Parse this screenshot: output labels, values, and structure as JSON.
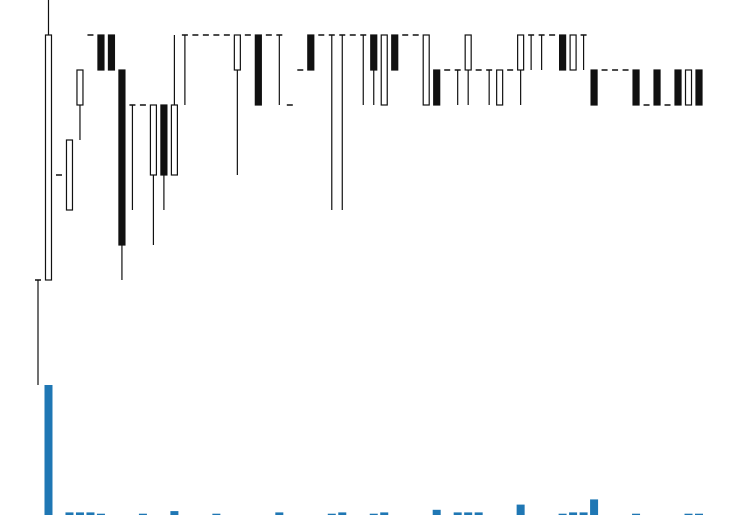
{
  "chart_data": {
    "type": "candlestick",
    "up_color": "#ffffff",
    "down_color": "#111111",
    "line_color": "#111111",
    "volume_color": "#1f77b4",
    "ylim": [
      0,
      11
    ],
    "volume_ylim": [
      0,
      100
    ],
    "open": [
      3,
      3,
      6,
      5,
      8,
      10,
      10,
      10,
      9,
      8,
      8,
      6,
      8,
      6,
      10,
      10,
      10,
      10,
      10,
      9,
      10,
      10,
      10,
      10,
      8,
      9,
      10,
      10,
      10,
      10,
      10,
      10,
      10,
      8,
      10,
      10,
      10,
      8,
      9,
      9,
      9,
      9,
      9,
      9,
      8,
      9,
      9,
      10,
      10,
      10,
      10,
      9,
      10,
      9,
      9,
      9,
      9,
      9,
      8,
      9,
      8,
      9,
      8,
      9
    ],
    "high": [
      3,
      11,
      6,
      7,
      9,
      10,
      10,
      10,
      9,
      8,
      8,
      8,
      8,
      10,
      10,
      10,
      10,
      10,
      10,
      10,
      10,
      10,
      10,
      10,
      8,
      9,
      10,
      10,
      10,
      10,
      10,
      10,
      10,
      10,
      10,
      10,
      10,
      10,
      9,
      9,
      9,
      10,
      9,
      9,
      9,
      9,
      10,
      10,
      10,
      10,
      10,
      10,
      10,
      9,
      9,
      9,
      9,
      9,
      8,
      9,
      8,
      9,
      9,
      9
    ],
    "low": [
      0,
      3,
      6,
      5,
      7,
      10,
      9,
      9,
      3,
      5,
      8,
      4,
      5,
      6,
      8,
      10,
      10,
      10,
      10,
      6,
      10,
      8,
      10,
      8,
      8,
      9,
      9,
      10,
      5,
      5,
      10,
      8,
      8,
      8,
      9,
      10,
      10,
      8,
      8,
      9,
      8,
      8,
      9,
      8,
      8,
      9,
      8,
      9,
      9,
      10,
      9,
      9,
      9,
      8,
      9,
      9,
      9,
      8,
      8,
      8,
      8,
      8,
      8,
      8
    ],
    "close": [
      3,
      10,
      6,
      7,
      9,
      10,
      9,
      9,
      4,
      8,
      8,
      8,
      6,
      8,
      10,
      10,
      10,
      10,
      10,
      10,
      10,
      8,
      10,
      10,
      8,
      9,
      9,
      10,
      10,
      10,
      10,
      10,
      9,
      10,
      9,
      10,
      10,
      10,
      8,
      9,
      9,
      10,
      9,
      9,
      9,
      9,
      10,
      10,
      10,
      10,
      9,
      10,
      10,
      8,
      9,
      9,
      9,
      8,
      8,
      8,
      8,
      8,
      9,
      8
    ],
    "volume": [
      0,
      100,
      0,
      2,
      2,
      2,
      1,
      0,
      0,
      0,
      1,
      0,
      0,
      3,
      0,
      0,
      0,
      1,
      0,
      0,
      0,
      0,
      0,
      2,
      0,
      0,
      0,
      0,
      1,
      2,
      0,
      0,
      1,
      2,
      0,
      0,
      0,
      0,
      4,
      0,
      2,
      2,
      2,
      0,
      0,
      0,
      8,
      0,
      0,
      0,
      1,
      2,
      2,
      12,
      0,
      0,
      0,
      1,
      0,
      0,
      0,
      0,
      1,
      1
    ]
  }
}
